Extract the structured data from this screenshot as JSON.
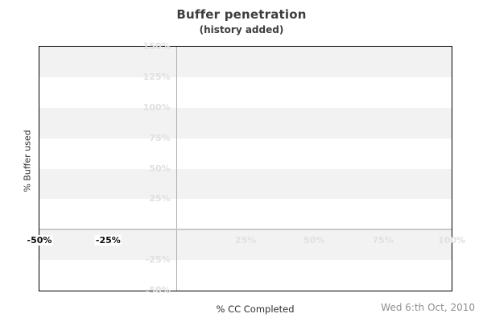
{
  "header": {
    "title": "Buffer penetration",
    "subtitle": "(history added)"
  },
  "axes": {
    "x_title": "% CC Completed",
    "y_title": "% Buffer used"
  },
  "footer": {
    "date": "Wed 6:th Oct, 2010"
  },
  "chart_data": {
    "type": "line",
    "title": "Buffer penetration",
    "subtitle": "(history added)",
    "xlabel": "% CC Completed",
    "ylabel": "% Buffer used",
    "xlim": [
      -50,
      100
    ],
    "ylim": [
      -50,
      150
    ],
    "x_ticks": [
      {
        "value": -50,
        "label": "-50%",
        "emphasis": "dark"
      },
      {
        "value": -25,
        "label": "-25%",
        "emphasis": "dark"
      },
      {
        "value": 25,
        "label": "25%",
        "emphasis": "faint"
      },
      {
        "value": 50,
        "label": "50%",
        "emphasis": "faint"
      },
      {
        "value": 75,
        "label": "75%",
        "emphasis": "faint"
      },
      {
        "value": 100,
        "label": "100%",
        "emphasis": "faint"
      }
    ],
    "y_ticks": [
      {
        "value": 150,
        "label": "150%"
      },
      {
        "value": 125,
        "label": "125%"
      },
      {
        "value": 100,
        "label": "100%"
      },
      {
        "value": 75,
        "label": "75%"
      },
      {
        "value": 50,
        "label": "50%"
      },
      {
        "value": 25,
        "label": "25%"
      },
      {
        "value": -25,
        "label": "-25%"
      },
      {
        "value": -50,
        "label": "-50%"
      }
    ],
    "series": [],
    "legend": "none",
    "grid": {
      "horizontal_bands_every": 25,
      "band_color": "#f2f2f2",
      "x_zero_line": true,
      "y_zero_line": true
    }
  },
  "colors": {
    "background": "#ffffff",
    "plot_border": "#000000",
    "band": "#f2f2f2",
    "faint_label": "#e0e0e0",
    "dark_label": "#0d0d0d",
    "zero_line_vertical": "#adadad",
    "zero_line_horizontal": "#c9c9c9",
    "title_text": "#3d3d3d",
    "axis_title_text": "#2e2e2e",
    "date_text": "#8f8f8f"
  }
}
